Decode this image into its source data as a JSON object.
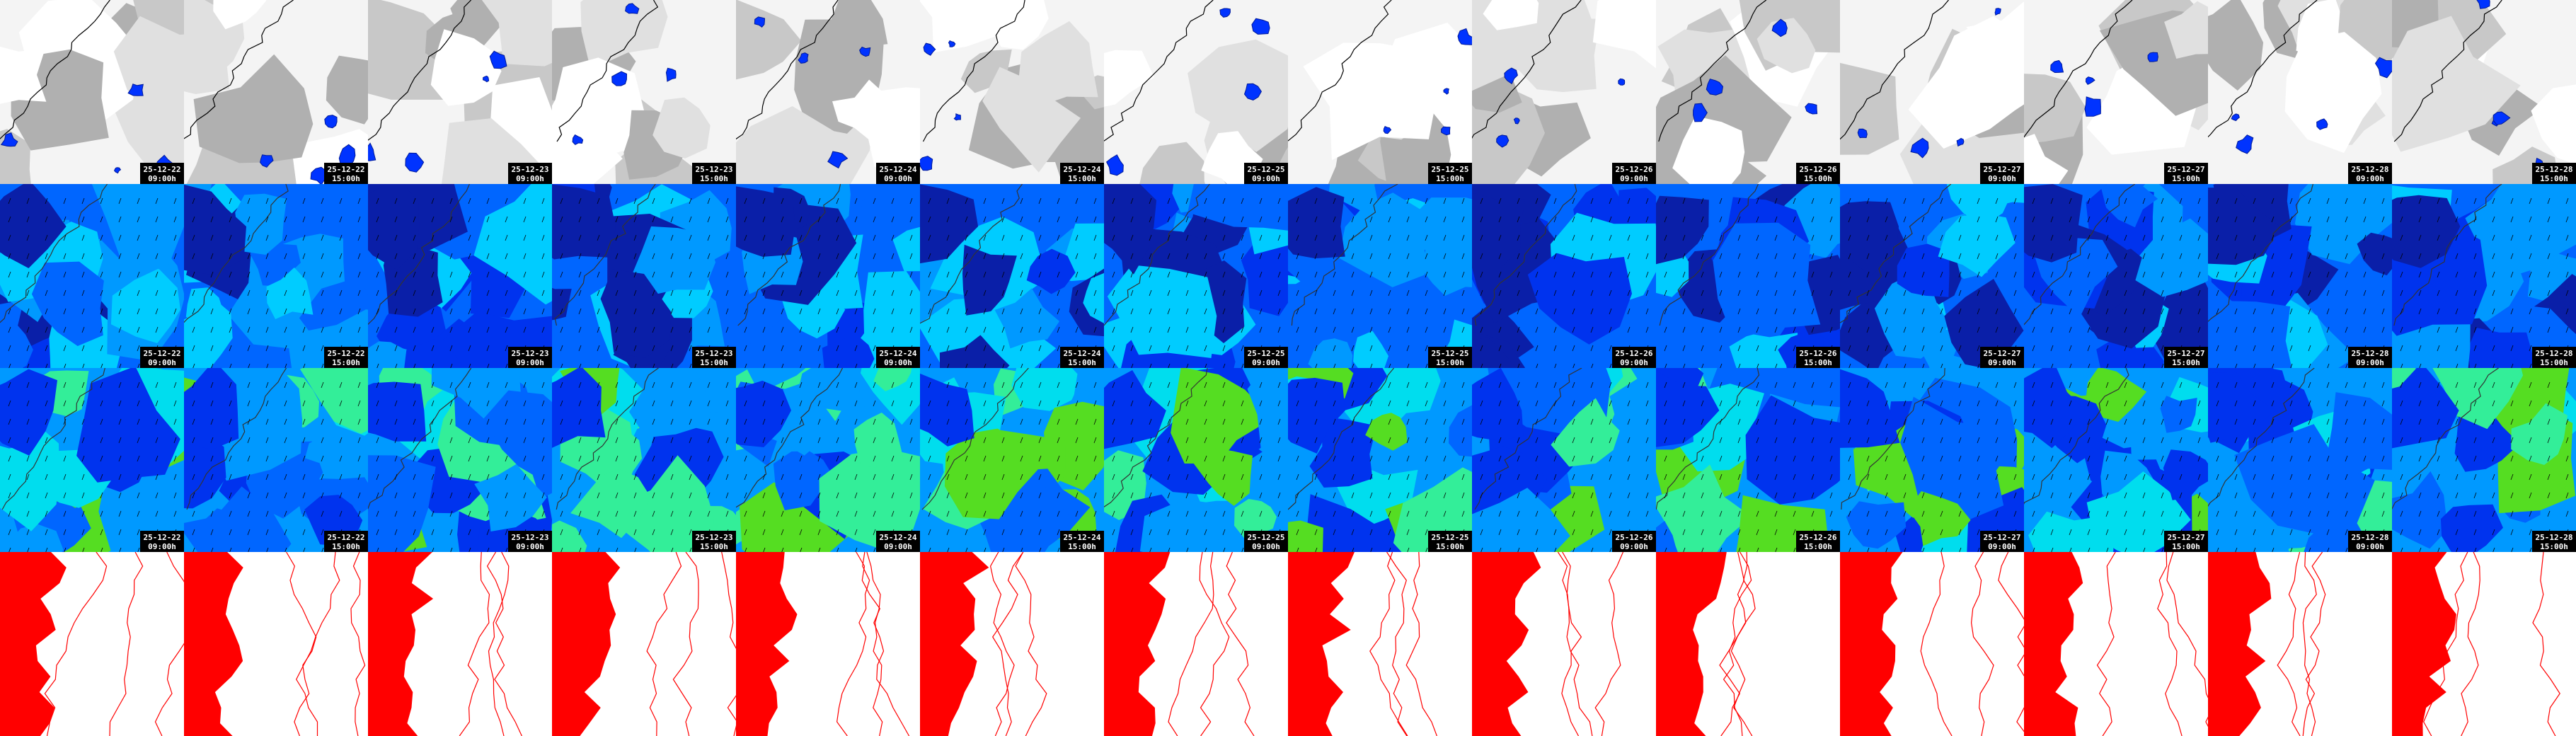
{
  "rows": [
    {
      "panels": [
        {
          "date": "25-12-22",
          "time": "09:00h"
        },
        {
          "date": "25-12-22",
          "time": "15:00h"
        },
        {
          "date": "25-12-23",
          "time": "09:00h"
        },
        {
          "date": "25-12-23",
          "time": "15:00h"
        },
        {
          "date": "25-12-24",
          "time": "09:00h"
        },
        {
          "date": "25-12-24",
          "time": "15:00h"
        },
        {
          "date": "25-12-25",
          "time": "09:00h"
        },
        {
          "date": "25-12-25",
          "time": "15:00h"
        },
        {
          "date": "25-12-26",
          "time": "09:00h"
        },
        {
          "date": "25-12-26",
          "time": "15:00h"
        },
        {
          "date": "25-12-27",
          "time": "09:00h"
        },
        {
          "date": "25-12-27",
          "time": "15:00h"
        },
        {
          "date": "25-12-28",
          "time": "09:00h"
        },
        {
          "date": "25-12-28",
          "time": "15:00h"
        }
      ]
    },
    {
      "panels": [
        {
          "date": "25-12-22",
          "time": "09:00h"
        },
        {
          "date": "25-12-22",
          "time": "15:00h"
        },
        {
          "date": "25-12-23",
          "time": "09:00h"
        },
        {
          "date": "25-12-23",
          "time": "15:00h"
        },
        {
          "date": "25-12-24",
          "time": "09:00h"
        },
        {
          "date": "25-12-24",
          "time": "15:00h"
        },
        {
          "date": "25-12-25",
          "time": "09:00h"
        },
        {
          "date": "25-12-25",
          "time": "15:00h"
        },
        {
          "date": "25-12-26",
          "time": "09:00h"
        },
        {
          "date": "25-12-26",
          "time": "15:00h"
        },
        {
          "date": "25-12-27",
          "time": "09:00h"
        },
        {
          "date": "25-12-27",
          "time": "15:00h"
        },
        {
          "date": "25-12-28",
          "time": "09:00h"
        },
        {
          "date": "25-12-28",
          "time": "15:00h"
        }
      ]
    },
    {
      "panels": [
        {
          "date": "25-12-22",
          "time": "09:00h"
        },
        {
          "date": "25-12-22",
          "time": "15:00h"
        },
        {
          "date": "25-12-23",
          "time": "09:00h"
        },
        {
          "date": "25-12-23",
          "time": "15:00h"
        },
        {
          "date": "25-12-24",
          "time": "09:00h"
        },
        {
          "date": "25-12-24",
          "time": "15:00h"
        },
        {
          "date": "25-12-25",
          "time": "09:00h"
        },
        {
          "date": "25-12-25",
          "time": "15:00h"
        },
        {
          "date": "25-12-26",
          "time": "09:00h"
        },
        {
          "date": "25-12-26",
          "time": "15:00h"
        },
        {
          "date": "25-12-27",
          "time": "09:00h"
        },
        {
          "date": "25-12-27",
          "time": "15:00h"
        },
        {
          "date": "25-12-28",
          "time": "09:00h"
        },
        {
          "date": "25-12-28",
          "time": "15:00h"
        }
      ]
    }
  ]
}
